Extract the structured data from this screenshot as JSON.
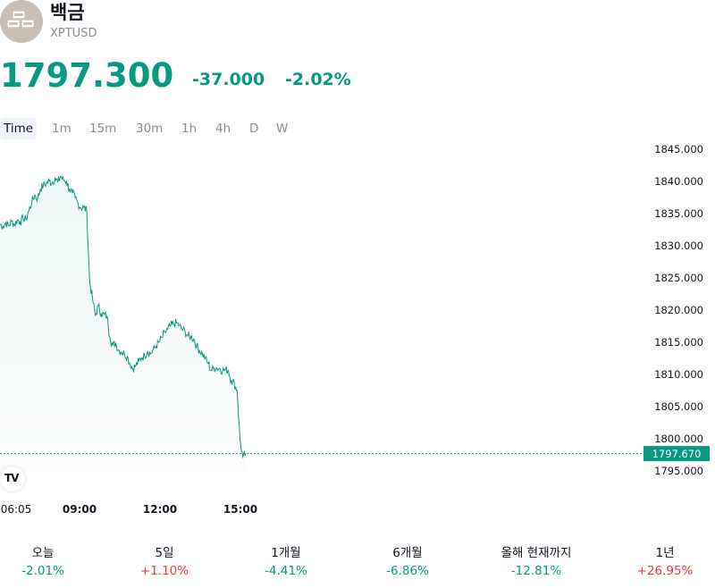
{
  "symbol": {
    "name": "백금",
    "ticker": "XPTUSD",
    "logo_icon": "platinum-bars-icon"
  },
  "quote": {
    "price": "1797.300",
    "change": "-37.000",
    "change_percent": "-2.02%",
    "color": "#089981"
  },
  "timeframes": [
    "Time",
    "1m",
    "15m",
    "30m",
    "1h",
    "4h",
    "D",
    "W"
  ],
  "active_timeframe": "Time",
  "chart_data": {
    "type": "area",
    "title": "",
    "xlabel": "",
    "ylabel": "",
    "x_tick_labels": [
      "06:05",
      "09:00",
      "12:00",
      "15:00"
    ],
    "y_tick_labels": [
      "1845.000",
      "1840.000",
      "1835.000",
      "1830.000",
      "1825.000",
      "1820.000",
      "1815.000",
      "1810.000",
      "1805.000",
      "1800.000",
      "1795.000"
    ],
    "ylim": [
      1794,
      1846
    ],
    "last_value_label": "1797.670",
    "last_value": 1797.67,
    "line_color": "#089981",
    "series": [
      {
        "values": [
          1833.4,
          1833.0,
          1833.6,
          1833.1,
          1833.8,
          1833.3,
          1834.0,
          1833.7,
          1834.3,
          1834.1,
          1835.5,
          1836.8,
          1837.9,
          1837.3,
          1838.9,
          1839.4,
          1839.7,
          1840.1,
          1839.8,
          1840.5,
          1839.9,
          1840.8,
          1840.2,
          1840.0,
          1838.8,
          1838.2,
          1837.5,
          1836.6,
          1835.9,
          1836.0,
          1835.4,
          1824.4,
          1821.8,
          1819.1,
          1820.7,
          1819.4,
          1819.3,
          1819.0,
          1815.8,
          1814.5,
          1814.8,
          1813.8,
          1813.5,
          1813.2,
          1812.8,
          1811.6,
          1810.9,
          1811.4,
          1812.0,
          1812.6,
          1812.9,
          1813.6,
          1813.2,
          1813.8,
          1814.4,
          1815.0,
          1815.7,
          1816.5,
          1817.0,
          1817.6,
          1817.8,
          1818.0,
          1817.6,
          1817.0,
          1816.7,
          1816.0,
          1815.8,
          1815.5,
          1814.4,
          1813.7,
          1813.2,
          1812.5,
          1811.7,
          1810.6,
          1811.0,
          1811.0,
          1810.9,
          1810.6,
          1810.7,
          1810.6,
          1809.0,
          1808.6,
          1807.5,
          1799.8,
          1797.0,
          1797.67
        ]
      }
    ]
  },
  "performance": [
    {
      "label": "오늘",
      "value": "-2.01%"
    },
    {
      "label": "5일",
      "value": "+1.10%"
    },
    {
      "label": "1개월",
      "value": "-4.41%"
    },
    {
      "label": "6개월",
      "value": "-6.86%"
    },
    {
      "label": "올해 현재까지",
      "value": "-12.81%"
    },
    {
      "label": "1년",
      "value": "+26.95%"
    }
  ],
  "colors": {
    "up": "#f23645",
    "down": "#089981",
    "text": "#131722",
    "muted": "#8a8e97"
  }
}
